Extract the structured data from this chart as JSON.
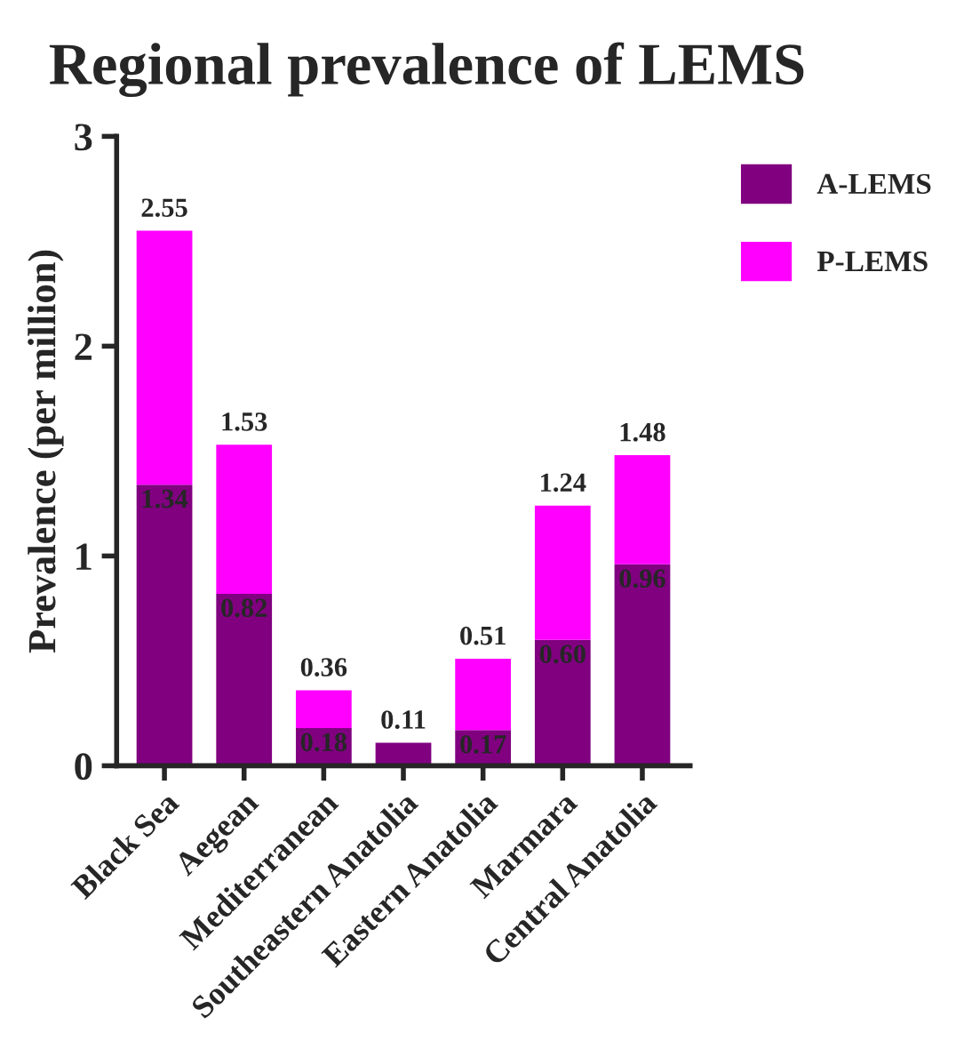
{
  "chart_data": {
    "type": "bar",
    "title": "Regional prevalence of LEMS",
    "ylabel": "Prevalence (per million)",
    "categories": [
      "Black Sea",
      "Aegean",
      "Mediterranean",
      "Southeastern Anatolia",
      "Eastern Anatolia",
      "Marmara",
      "Central Anatolia"
    ],
    "stacked": true,
    "series": [
      {
        "name": "A-LEMS",
        "color": "#800080",
        "values": [
          1.34,
          0.82,
          0.18,
          0.11,
          0.17,
          0.6,
          0.96
        ],
        "value_labels": [
          "1.34",
          "0.82",
          "0.18",
          null,
          "0.17",
          "0.60",
          "0.96"
        ]
      },
      {
        "name": "P-LEMS",
        "color": "#ff00ff",
        "values": [
          1.21,
          0.71,
          0.18,
          null,
          0.34,
          0.64,
          0.52
        ]
      }
    ],
    "totals": [
      "2.55",
      "1.53",
      "0.36",
      "0.11",
      "0.51",
      "1.24",
      "1.48"
    ],
    "ylim": [
      0,
      3
    ],
    "yticks": [
      0,
      1,
      2,
      3
    ],
    "legend": "top right",
    "grid": false
  }
}
